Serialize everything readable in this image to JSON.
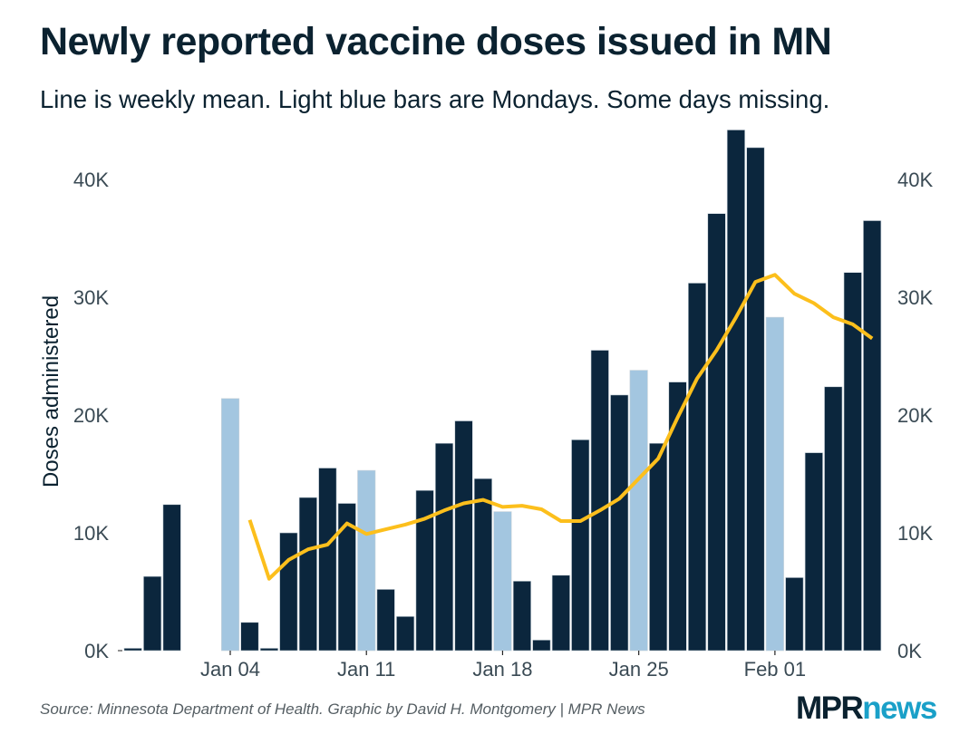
{
  "header": {
    "title": "Newly reported vaccine doses issued in MN",
    "subtitle": "Line is weekly mean. Light blue bars are Mondays. Some days missing."
  },
  "footer": {
    "source": "Source: Minnesota Department of Health. Graphic by David H. Montgomery | MPR News",
    "logo_part1": "MPR",
    "logo_part2": "news"
  },
  "colors": {
    "bar": "#0b263d",
    "monday_bar": "#a3c6e0",
    "line": "#fcbf1c",
    "logo_dark": "#0b2230",
    "logo_accent": "#1aa0c8"
  },
  "chart_data": {
    "type": "bar",
    "title": "Newly reported vaccine doses issued in MN",
    "subtitle": "Line is weekly mean. Light blue bars are Mondays. Some days missing.",
    "xlabel": "",
    "ylabel": "Doses administered",
    "ylim": [
      0,
      44500
    ],
    "y_ticks": [
      0,
      10000,
      20000,
      30000,
      40000
    ],
    "y_tick_labels": [
      "0K",
      "10K",
      "20K",
      "30K",
      "40K"
    ],
    "y_axis_sides": [
      "left",
      "right"
    ],
    "x_ticks": [
      "Jan 04",
      "Jan 11",
      "Jan 18",
      "Jan 25",
      "Feb 01"
    ],
    "x_range": [
      "Dec 30",
      "Feb 06"
    ],
    "grid": false,
    "series": [
      {
        "name": "Daily doses",
        "type": "bar",
        "points": [
          {
            "date": "Dec 30",
            "value": 200,
            "monday": false
          },
          {
            "date": "Dec 31",
            "value": 6300,
            "monday": false
          },
          {
            "date": "Jan 01",
            "value": 12400,
            "monday": false
          },
          {
            "date": "Jan 04",
            "value": 21400,
            "monday": true
          },
          {
            "date": "Jan 05",
            "value": 2400,
            "monday": false
          },
          {
            "date": "Jan 06",
            "value": 200,
            "monday": false
          },
          {
            "date": "Jan 07",
            "value": 10000,
            "monday": false
          },
          {
            "date": "Jan 08",
            "value": 13000,
            "monday": false
          },
          {
            "date": "Jan 09",
            "value": 15500,
            "monday": false
          },
          {
            "date": "Jan 10",
            "value": 12500,
            "monday": false
          },
          {
            "date": "Jan 11",
            "value": 15300,
            "monday": true
          },
          {
            "date": "Jan 12",
            "value": 5200,
            "monday": false
          },
          {
            "date": "Jan 13",
            "value": 2900,
            "monday": false
          },
          {
            "date": "Jan 14",
            "value": 13600,
            "monday": false
          },
          {
            "date": "Jan 15",
            "value": 17600,
            "monday": false
          },
          {
            "date": "Jan 16",
            "value": 19500,
            "monday": false
          },
          {
            "date": "Jan 17",
            "value": 14600,
            "monday": false
          },
          {
            "date": "Jan 18",
            "value": 11800,
            "monday": true
          },
          {
            "date": "Jan 19",
            "value": 5900,
            "monday": false
          },
          {
            "date": "Jan 20",
            "value": 900,
            "monday": false
          },
          {
            "date": "Jan 21",
            "value": 6400,
            "monday": false
          },
          {
            "date": "Jan 22",
            "value": 17900,
            "monday": false
          },
          {
            "date": "Jan 23",
            "value": 25500,
            "monday": false
          },
          {
            "date": "Jan 24",
            "value": 21700,
            "monday": false
          },
          {
            "date": "Jan 25",
            "value": 23800,
            "monday": true
          },
          {
            "date": "Jan 26",
            "value": 17600,
            "monday": false
          },
          {
            "date": "Jan 27",
            "value": 22800,
            "monday": false
          },
          {
            "date": "Jan 28",
            "value": 31200,
            "monday": false
          },
          {
            "date": "Jan 29",
            "value": 37100,
            "monday": false
          },
          {
            "date": "Jan 30",
            "value": 44200,
            "monday": false
          },
          {
            "date": "Jan 31",
            "value": 42700,
            "monday": false
          },
          {
            "date": "Feb 01",
            "value": 28300,
            "monday": true
          },
          {
            "date": "Feb 02",
            "value": 6200,
            "monday": false
          },
          {
            "date": "Feb 03",
            "value": 16800,
            "monday": false
          },
          {
            "date": "Feb 04",
            "value": 22400,
            "monday": false
          },
          {
            "date": "Feb 05",
            "value": 32100,
            "monday": false
          },
          {
            "date": "Feb 06",
            "value": 36500,
            "monday": false
          }
        ]
      },
      {
        "name": "Weekly mean",
        "type": "line",
        "points": [
          {
            "date": "Jan 05",
            "value": 11100
          },
          {
            "date": "Jan 06",
            "value": 6100
          },
          {
            "date": "Jan 07",
            "value": 7700
          },
          {
            "date": "Jan 08",
            "value": 8600
          },
          {
            "date": "Jan 09",
            "value": 9000
          },
          {
            "date": "Jan 10",
            "value": 10800
          },
          {
            "date": "Jan 11",
            "value": 9900
          },
          {
            "date": "Jan 12",
            "value": 10300
          },
          {
            "date": "Jan 13",
            "value": 10700
          },
          {
            "date": "Jan 14",
            "value": 11200
          },
          {
            "date": "Jan 15",
            "value": 11900
          },
          {
            "date": "Jan 16",
            "value": 12500
          },
          {
            "date": "Jan 17",
            "value": 12800
          },
          {
            "date": "Jan 18",
            "value": 12200
          },
          {
            "date": "Jan 19",
            "value": 12300
          },
          {
            "date": "Jan 20",
            "value": 12000
          },
          {
            "date": "Jan 21",
            "value": 11000
          },
          {
            "date": "Jan 22",
            "value": 11000
          },
          {
            "date": "Jan 23",
            "value": 11900
          },
          {
            "date": "Jan 24",
            "value": 12900
          },
          {
            "date": "Jan 25",
            "value": 14600
          },
          {
            "date": "Jan 26",
            "value": 16300
          },
          {
            "date": "Jan 27",
            "value": 19800
          },
          {
            "date": "Jan 28",
            "value": 23100
          },
          {
            "date": "Jan 29",
            "value": 25500
          },
          {
            "date": "Jan 30",
            "value": 28300
          },
          {
            "date": "Jan 31",
            "value": 31300
          },
          {
            "date": "Feb 01",
            "value": 31900
          },
          {
            "date": "Feb 02",
            "value": 30300
          },
          {
            "date": "Feb 03",
            "value": 29500
          },
          {
            "date": "Feb 04",
            "value": 28300
          },
          {
            "date": "Feb 05",
            "value": 27700
          },
          {
            "date": "Feb 06",
            "value": 26500
          }
        ]
      }
    ]
  }
}
